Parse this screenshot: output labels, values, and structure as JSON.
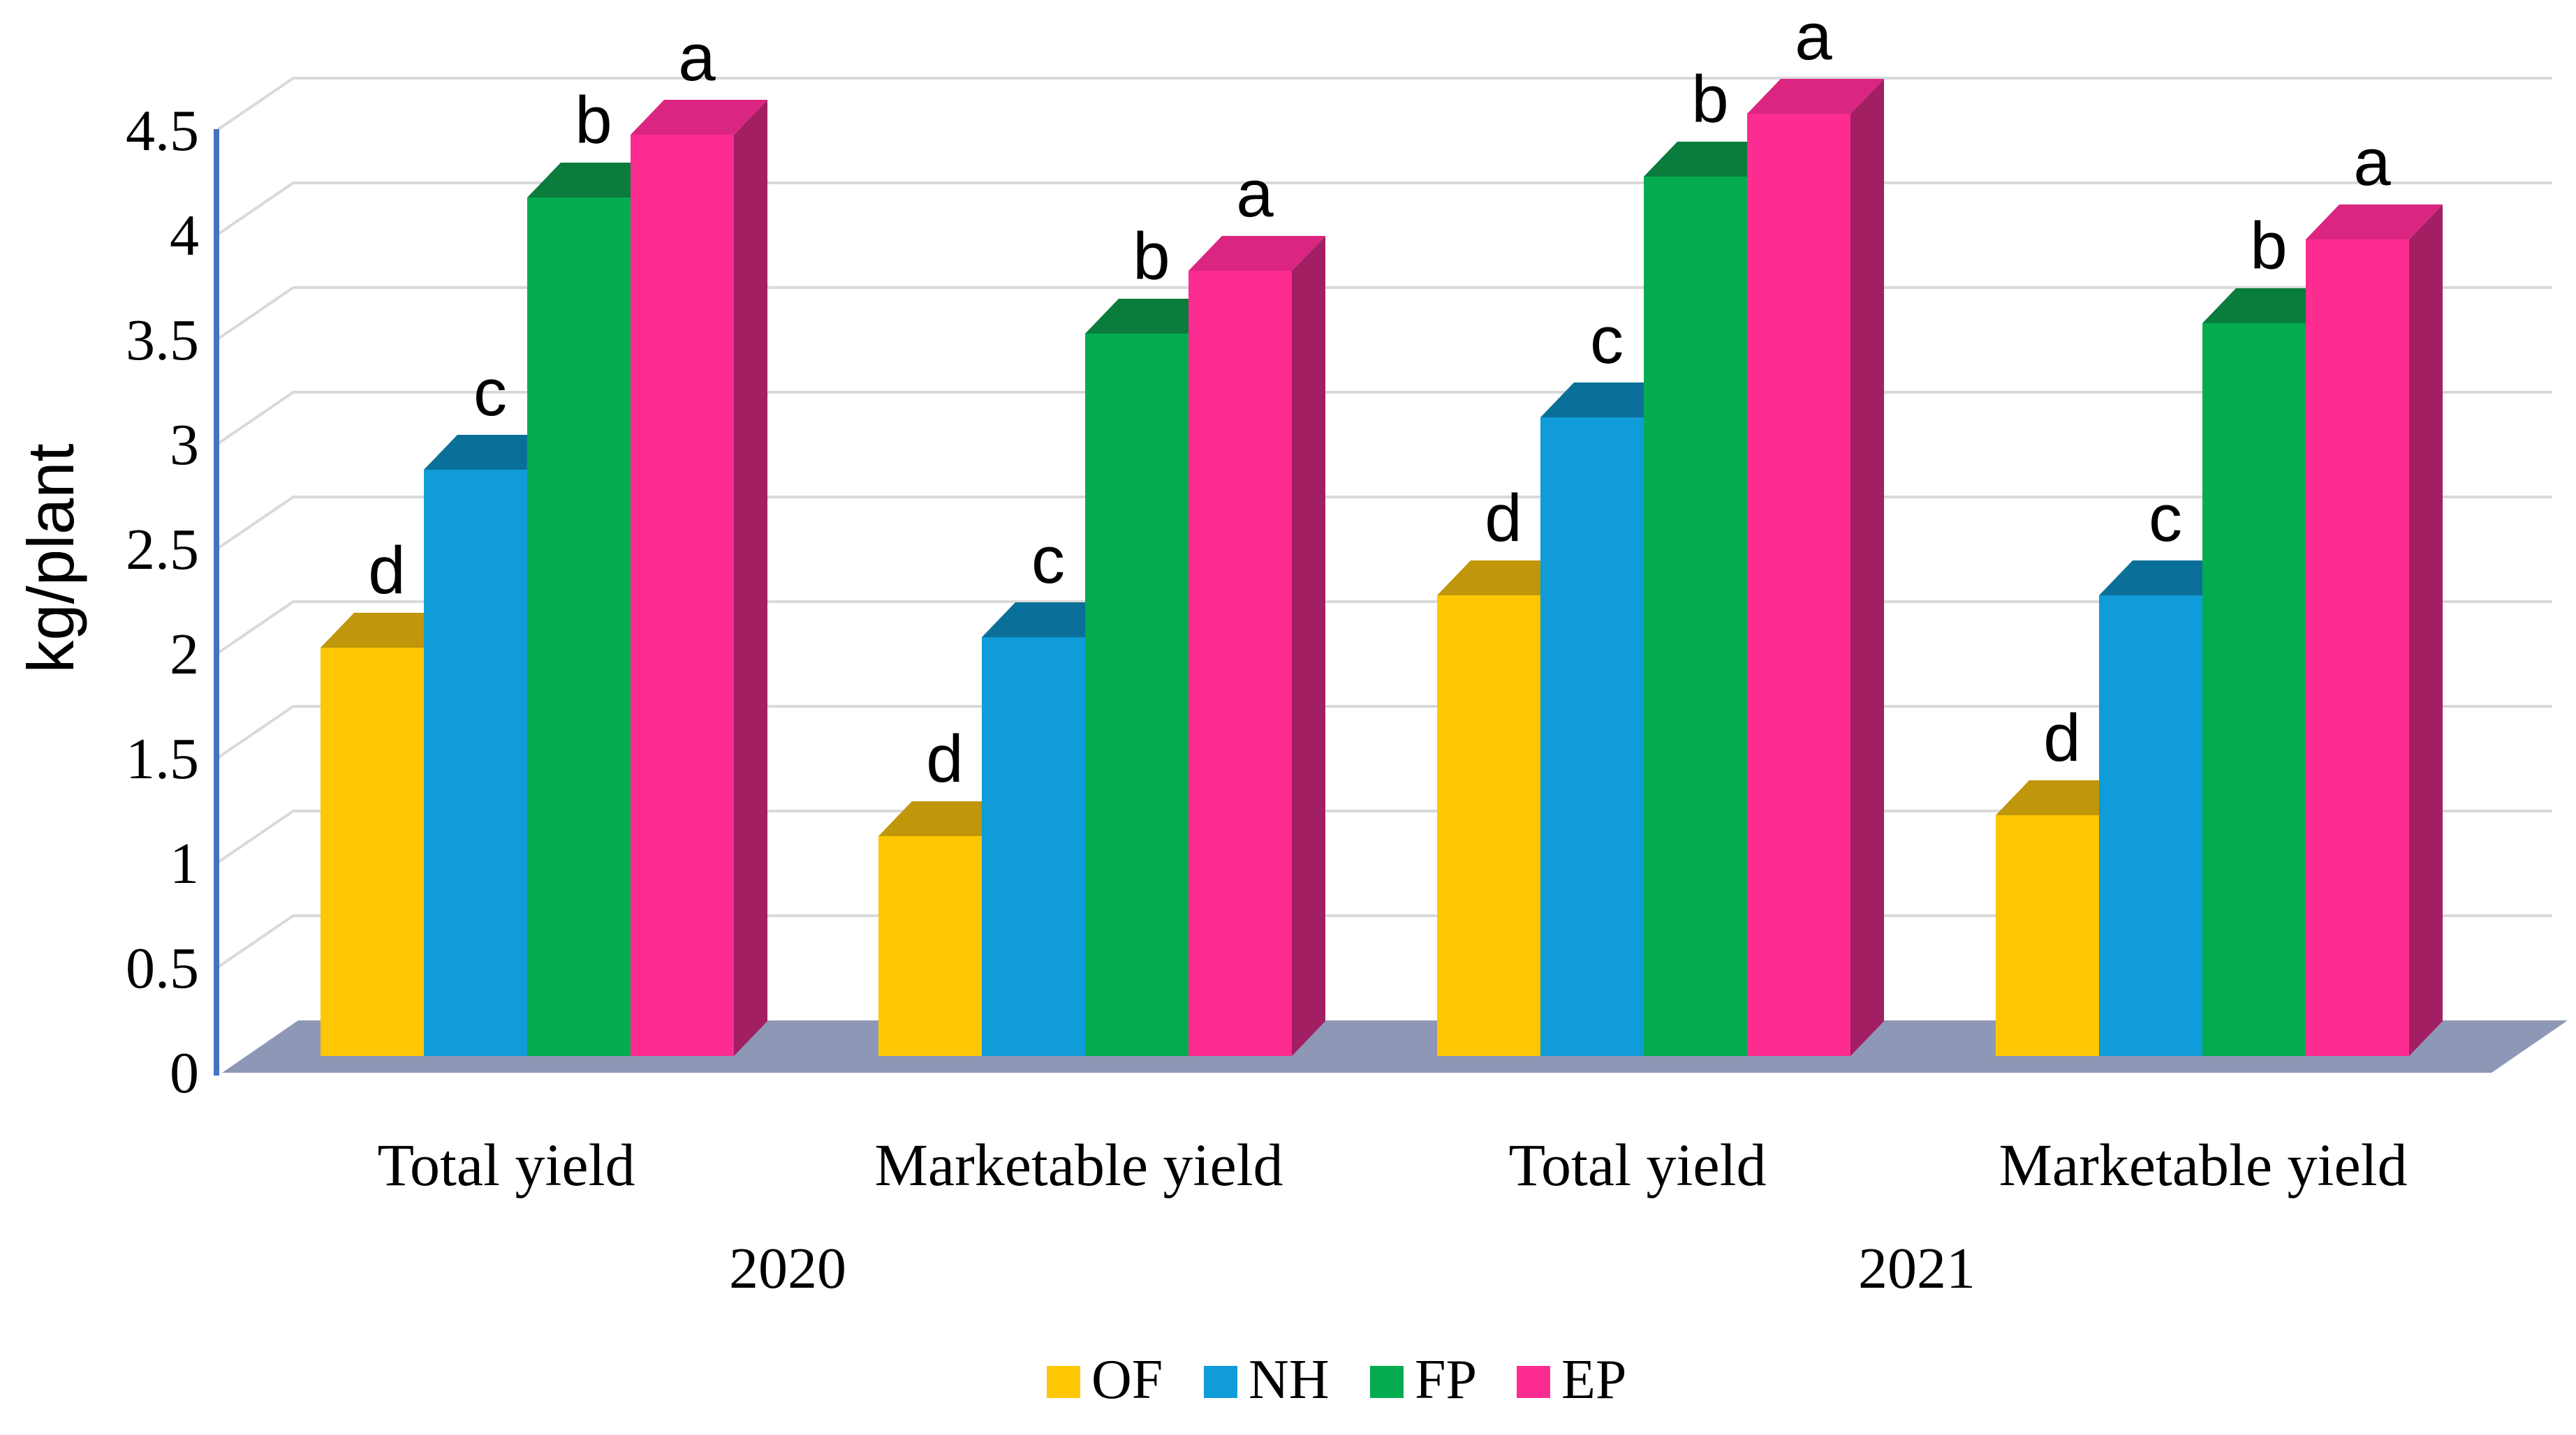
{
  "chart_data": {
    "type": "bar",
    "projection": "3d-column",
    "title": "",
    "xlabel": "",
    "ylabel": "kg/plant",
    "ylim": [
      0,
      4.5
    ],
    "ytick_step": 0.5,
    "yticks": [
      "0",
      "0.5",
      "1",
      "1.5",
      "2",
      "2.5",
      "3",
      "3.5",
      "4",
      "4.5"
    ],
    "grid": "on",
    "legend_position": "bottom",
    "group_labels": [
      "Total yield",
      "Marketable yield",
      "Total yield",
      "Marketable yield"
    ],
    "year_labels": [
      "2020",
      "2021"
    ],
    "series": [
      {
        "name": "OF",
        "letter": "d",
        "values": [
          1.95,
          1.05,
          2.2,
          1.15
        ],
        "colors": {
          "front": "#FFC703",
          "top": "#C0960A",
          "side": "#9E7B00"
        }
      },
      {
        "name": "NH",
        "letter": "c",
        "values": [
          2.8,
          2.0,
          3.05,
          2.2
        ],
        "colors": {
          "front": "#0F9CD8",
          "top": "#0B7099",
          "side": "#095E82"
        }
      },
      {
        "name": "FP",
        "letter": "b",
        "values": [
          4.1,
          3.45,
          4.2,
          3.5
        ],
        "colors": {
          "front": "#04AC4F",
          "top": "#0A7C3C",
          "side": "#076732"
        }
      },
      {
        "name": "EP",
        "letter": "a",
        "values": [
          4.4,
          3.75,
          4.5,
          3.9
        ],
        "colors": {
          "front": "#FC2C90",
          "top": "#DB2681",
          "side": "#A21F63"
        }
      }
    ],
    "annotations_note": "letters a-d above bars denote statistical significance groups per cluster (OF=d, NH=c, FP=b, EP=a)"
  },
  "colors": {
    "axis": "#4472C4",
    "gridline": "#D9D9D9",
    "floor": "#8E98B6",
    "background": "#FFFFFF",
    "text": "#000000"
  }
}
